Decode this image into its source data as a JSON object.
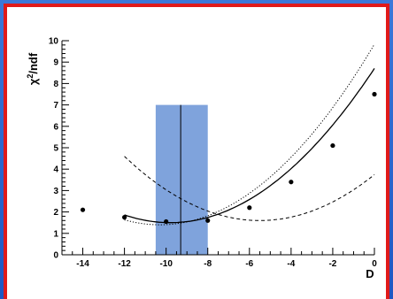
{
  "chart_data": {
    "type": "scatter",
    "xlabel": "D",
    "ylabel_main": "χ",
    "ylabel_sup": "2",
    "ylabel_rest": "/ndf",
    "xlim": [
      -15,
      0
    ],
    "ylim": [
      0,
      10
    ],
    "x_ticks": [
      -14,
      -12,
      -10,
      -8,
      -6,
      -4,
      -2,
      0
    ],
    "y_ticks": [
      0,
      1,
      2,
      3,
      4,
      5,
      6,
      7,
      8,
      9,
      10
    ],
    "points": [
      {
        "x": -14,
        "y": 2.1
      },
      {
        "x": -12,
        "y": 1.75
      },
      {
        "x": -10,
        "y": 1.55
      },
      {
        "x": -8,
        "y": 1.6
      },
      {
        "x": -6,
        "y": 2.2
      },
      {
        "x": -4,
        "y": 3.4
      },
      {
        "x": -2,
        "y": 5.1
      },
      {
        "x": 0,
        "y": 7.5
      }
    ],
    "band": {
      "x_min": -10.5,
      "x_max": -8.0,
      "y_max": 7.0,
      "center": -9.3,
      "color": "#7fa3dc"
    },
    "curves": [
      {
        "style": "solid",
        "x_range": [
          -12,
          0
        ],
        "a": 0.075,
        "x0": -9.8,
        "y0": 1.5
      },
      {
        "style": "dotted",
        "x_range": [
          -12,
          0
        ],
        "a": 0.0795,
        "x0": -10.3,
        "y0": 1.4
      },
      {
        "style": "dashed",
        "x_range": [
          -12,
          0
        ],
        "a": 0.0709,
        "x0": -5.5,
        "y0": 1.6
      }
    ]
  }
}
